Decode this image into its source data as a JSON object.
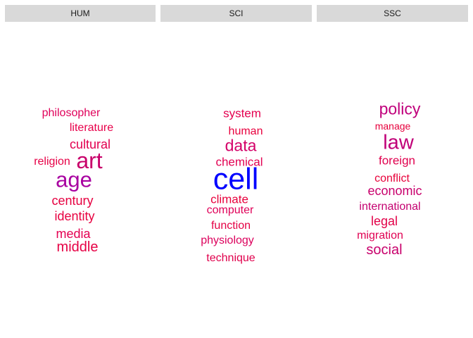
{
  "chart_data": {
    "type": "wordcloud",
    "facets": [
      {
        "label": "HUM",
        "words": [
          {
            "text": "philosopher",
            "weight": 1.8,
            "color": "#e0005a"
          },
          {
            "text": "literature",
            "weight": 1.8,
            "color": "#e8004a"
          },
          {
            "text": "cultural",
            "weight": 2.0,
            "color": "#e2004f"
          },
          {
            "text": "religion",
            "weight": 1.8,
            "color": "#e60046"
          },
          {
            "text": "art",
            "weight": 3.6,
            "color": "#c8006a"
          },
          {
            "text": "age",
            "weight": 3.4,
            "color": "#a800a0"
          },
          {
            "text": "century",
            "weight": 2.0,
            "color": "#e60040"
          },
          {
            "text": "identity",
            "weight": 2.0,
            "color": "#e80040"
          },
          {
            "text": "media",
            "weight": 2.0,
            "color": "#e40052"
          },
          {
            "text": "middle",
            "weight": 2.2,
            "color": "#e60045"
          }
        ]
      },
      {
        "label": "SCI",
        "words": [
          {
            "text": "system",
            "weight": 1.9,
            "color": "#e40050"
          },
          {
            "text": "human",
            "weight": 1.8,
            "color": "#e8003e"
          },
          {
            "text": "data",
            "weight": 2.6,
            "color": "#d40068"
          },
          {
            "text": "chemical",
            "weight": 1.9,
            "color": "#e20052"
          },
          {
            "text": "cell",
            "weight": 4.8,
            "color": "#0000ff"
          },
          {
            "text": "climate",
            "weight": 1.9,
            "color": "#e8003c"
          },
          {
            "text": "computer",
            "weight": 1.8,
            "color": "#e00058"
          },
          {
            "text": "function",
            "weight": 1.8,
            "color": "#e40044"
          },
          {
            "text": "physiology",
            "weight": 1.8,
            "color": "#dc005c"
          },
          {
            "text": "technique",
            "weight": 1.8,
            "color": "#e0004c"
          }
        ]
      },
      {
        "label": "SSC",
        "words": [
          {
            "text": "policy",
            "weight": 2.6,
            "color": "#c0007c"
          },
          {
            "text": "manage",
            "weight": 1.6,
            "color": "#e6003c"
          },
          {
            "text": "law",
            "weight": 3.2,
            "color": "#c00078"
          },
          {
            "text": "foreign",
            "weight": 1.9,
            "color": "#e0004e"
          },
          {
            "text": "conflict",
            "weight": 1.8,
            "color": "#e8003a"
          },
          {
            "text": "economic",
            "weight": 2.0,
            "color": "#c8006c"
          },
          {
            "text": "international",
            "weight": 1.8,
            "color": "#c40070"
          },
          {
            "text": "legal",
            "weight": 2.0,
            "color": "#e20048"
          },
          {
            "text": "migration",
            "weight": 1.8,
            "color": "#e00052"
          },
          {
            "text": "social",
            "weight": 2.2,
            "color": "#c8006c"
          }
        ]
      }
    ]
  }
}
